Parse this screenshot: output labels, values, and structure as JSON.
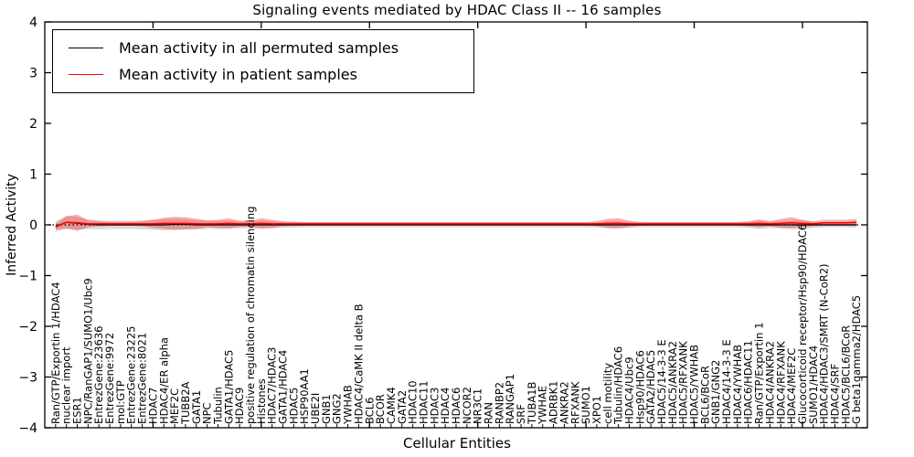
{
  "chart_data": {
    "type": "line",
    "title": "Signaling events mediated by HDAC Class II -- 16 samples",
    "xlabel": "Cellular Entities",
    "ylabel": "Inferred Activity",
    "xlim": [
      0,
      76
    ],
    "ylim": [
      -4,
      4
    ],
    "grid": false,
    "legend_position": "upper left",
    "ytick_values": [
      4,
      3,
      2,
      1,
      0,
      -1,
      -2,
      -3,
      -4
    ],
    "ytick_labels": [
      "4",
      "3",
      "2",
      "1",
      "0",
      "−1",
      "−2",
      "−3",
      "−4"
    ],
    "xtick_major_values": [
      10,
      20,
      30,
      40,
      50,
      60,
      70
    ],
    "zero_line": {
      "value": 0,
      "style": "dotted",
      "color": "#000000"
    },
    "categories": [
      "Ran/GTP/Exportin 1/HDAC4",
      "nuclear import",
      "ESR1",
      "NPC/RanGAP1/SUMO1/Ubc9",
      "EntrezGene:23636",
      "EntrezGene:9972",
      "mol:GTP",
      "EntrezGene:23225",
      "EntrezGene:8021",
      "HDAC7",
      "HDAC4/ER alpha",
      "MEF2C",
      "TUBB2A",
      "GATA1",
      "NPC",
      "Tubulin",
      "GATA1/HDAC5",
      "HDAC9",
      "positive regulation of chromatin silencing",
      "Histones",
      "HDAC7/HDAC3",
      "GATA1/HDAC4",
      "HDAC5",
      "HSP90AA1",
      "UBE2I",
      "GNB1",
      "GNG2",
      "YWHAB",
      "HDAC4/CaMK II delta B",
      "BCL6",
      "BCOR",
      "CAMK4",
      "GATA2",
      "HDAC10",
      "HDAC11",
      "HDAC3",
      "HDAC4",
      "HDAC6",
      "NCOR2",
      "NR3C1",
      "RAN",
      "RANBP2",
      "RANGAP1",
      "SRF",
      "TUBA1B",
      "YWHAE",
      "ADRBK1",
      "ANKRA2",
      "RFXANK",
      "SUMO1",
      "XPO1",
      "cell motility",
      "Tubulin/HDAC6",
      "HDAC4/Ubc9",
      "Hsp90/HDAC6",
      "GATA2/HDAC5",
      "HDAC5/14-3-3 E",
      "HDAC5/ANKRA2",
      "HDAC5/RFXANK",
      "HDAC5/YWHAB",
      "BCL6/BCoR",
      "GNB1/GNG2",
      "HDAC4/14-3-3 E",
      "HDAC4/YWHAB",
      "HDAC6/HDAC11",
      "Ran/GTP/Exportin 1",
      "HDAC4/ANKRA2",
      "HDAC4/RFXANK",
      "HDAC4/MEF2C",
      "Glucocorticoid receptor/Hsp90/HDAC6",
      "SUMO1/HDAC4",
      "HDAC4/HDAC3/SMRT (N-CoR2)",
      "HDAC4/SRF",
      "HDAC5/BCL6/BCoR",
      "G beta1gamma2/HDAC5"
    ],
    "series": [
      {
        "name": "Mean activity in all permuted samples",
        "color": "#000000",
        "values": [
          -0.03,
          0.05,
          0.03,
          0.01,
          0,
          0,
          0,
          0,
          0,
          0,
          0,
          0.01,
          0.01,
          0,
          0,
          0,
          0,
          0,
          0,
          0,
          0,
          0,
          0,
          0,
          0,
          0,
          0,
          0,
          0,
          0,
          0,
          0,
          0,
          0,
          0,
          0,
          0,
          0,
          0,
          0,
          0,
          0,
          0,
          0,
          0,
          0,
          0,
          0,
          0,
          0,
          0,
          0,
          0,
          0,
          0,
          0,
          0,
          0,
          0,
          0,
          0,
          0,
          0,
          0,
          0,
          0,
          0,
          0,
          0,
          0,
          0,
          0,
          0,
          0,
          0
        ]
      },
      {
        "name": "Mean activity in patient samples",
        "color": "#ff0000",
        "values": [
          -0.04,
          0.05,
          0.04,
          0.02,
          0.02,
          0.02,
          0.02,
          0.02,
          0.02,
          0.02,
          0.03,
          0.03,
          0.03,
          0.02,
          0.02,
          0.02,
          0.03,
          0.02,
          0.02,
          0.03,
          0.02,
          0.02,
          0.02,
          0.02,
          0.02,
          0.02,
          0.02,
          0.02,
          0.02,
          0.02,
          0.02,
          0.02,
          0.02,
          0.02,
          0.02,
          0.02,
          0.02,
          0.02,
          0.02,
          0.02,
          0.02,
          0.02,
          0.02,
          0.02,
          0.02,
          0.02,
          0.02,
          0.02,
          0.02,
          0.02,
          0.02,
          0.03,
          0.03,
          0.02,
          0.02,
          0.02,
          0.02,
          0.02,
          0.02,
          0.02,
          0.02,
          0.02,
          0.02,
          0.02,
          0.02,
          0.03,
          0.02,
          0.03,
          0.04,
          0.03,
          0.02,
          0.04,
          0.04,
          0.04,
          0.05
        ]
      }
    ],
    "bands": [
      {
        "name": "permuted samples spread",
        "color": "#000000",
        "opacity": 0.14,
        "center_series": 0,
        "halfwidths": [
          0.1,
          0.13,
          0.12,
          0.1,
          0.09,
          0.08,
          0.08,
          0.08,
          0.09,
          0.1,
          0.11,
          0.11,
          0.1,
          0.09,
          0.08,
          0.08,
          0.08,
          0.07,
          0.07,
          0.08,
          0.07,
          0.06,
          0.06,
          0.05,
          0.05,
          0.05,
          0.05,
          0.05,
          0.05,
          0.05,
          0.05,
          0.05,
          0.05,
          0.05,
          0.05,
          0.05,
          0.05,
          0.05,
          0.05,
          0.05,
          0.05,
          0.05,
          0.05,
          0.05,
          0.05,
          0.05,
          0.05,
          0.05,
          0.05,
          0.05,
          0.05,
          0.07,
          0.07,
          0.06,
          0.05,
          0.05,
          0.05,
          0.05,
          0.05,
          0.05,
          0.05,
          0.05,
          0.05,
          0.05,
          0.06,
          0.08,
          0.06,
          0.07,
          0.08,
          0.09,
          0.06,
          0.05,
          0.05,
          0.05,
          0.06
        ]
      },
      {
        "name": "patient samples spread",
        "color": "#ff0000",
        "opacity": 0.32,
        "center_series": 1,
        "halfwidths": [
          0.06,
          0.12,
          0.16,
          0.07,
          0.05,
          0.04,
          0.04,
          0.04,
          0.05,
          0.08,
          0.11,
          0.13,
          0.12,
          0.1,
          0.07,
          0.08,
          0.1,
          0.06,
          0.06,
          0.1,
          0.08,
          0.05,
          0.04,
          0.035,
          0.035,
          0.035,
          0.035,
          0.035,
          0.035,
          0.035,
          0.035,
          0.035,
          0.035,
          0.035,
          0.035,
          0.035,
          0.035,
          0.035,
          0.035,
          0.035,
          0.035,
          0.035,
          0.035,
          0.035,
          0.035,
          0.035,
          0.035,
          0.035,
          0.035,
          0.035,
          0.05,
          0.09,
          0.1,
          0.06,
          0.04,
          0.035,
          0.035,
          0.035,
          0.035,
          0.035,
          0.035,
          0.035,
          0.035,
          0.035,
          0.05,
          0.08,
          0.05,
          0.09,
          0.11,
          0.07,
          0.05,
          0.06,
          0.06,
          0.06,
          0.07
        ]
      }
    ]
  },
  "colors": {
    "background": "#ffffff",
    "axis": "#000000",
    "permuted_line": "#000000",
    "patient_line": "#ff0000"
  }
}
